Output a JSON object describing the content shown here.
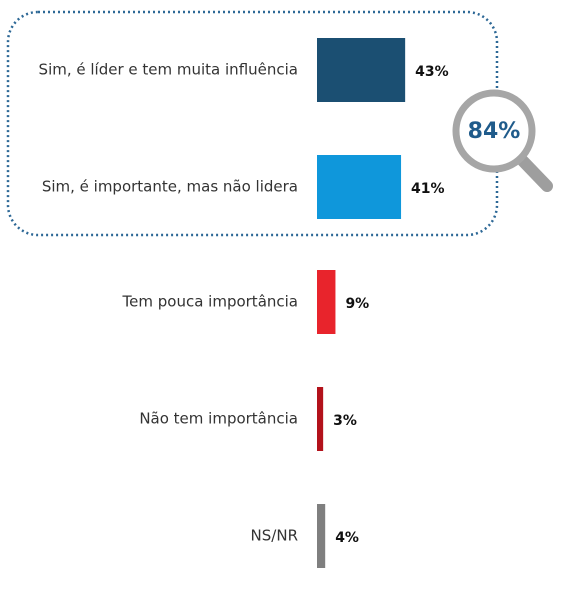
{
  "chart_data": {
    "type": "hbar",
    "categories": [
      "Sim, é líder e tem muita influência",
      "Sim, é importante, mas não lidera",
      "Tem pouca importância",
      "Não tem importância",
      "NS/NR"
    ],
    "values": [
      43,
      41,
      9,
      3,
      4
    ],
    "value_labels": [
      "43%",
      "41%",
      "9%",
      "3%",
      "4%"
    ],
    "colors": [
      "#1b4f72",
      "#0f97db",
      "#e8242c",
      "#b3121b",
      "#7f7f7f"
    ],
    "annotation": "84%"
  }
}
